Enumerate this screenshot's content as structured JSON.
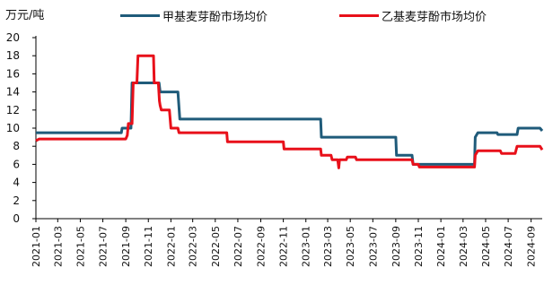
{
  "chart_data": {
    "type": "line",
    "ylabel": "万元/吨",
    "ylim": [
      0,
      20
    ],
    "yticks": [
      0,
      2,
      4,
      6,
      8,
      10,
      12,
      14,
      16,
      18,
      20
    ],
    "xlim": [
      "2021-01-01",
      "2024-10-01"
    ],
    "xticks": [
      "2021-01",
      "2021-03",
      "2021-05",
      "2021-07",
      "2021-09",
      "2021-11",
      "2022-01",
      "2022-03",
      "2022-05",
      "2022-07",
      "2022-09",
      "2022-11",
      "2023-01",
      "2023-03",
      "2023-05",
      "2023-07",
      "2023-09",
      "2023-11",
      "2024-01",
      "2024-03",
      "2024-05",
      "2024-07",
      "2024-09"
    ],
    "legend_position": "top",
    "grid": false,
    "series": [
      {
        "name": "甲基麦芽酚市场均价",
        "color": "#1f5b7a",
        "points": [
          [
            "2021-01-01",
            9.5
          ],
          [
            "2021-08-20",
            9.5
          ],
          [
            "2021-08-22",
            10
          ],
          [
            "2021-09-15",
            10
          ],
          [
            "2021-09-18",
            15
          ],
          [
            "2021-11-30",
            15
          ],
          [
            "2021-12-03",
            14
          ],
          [
            "2022-01-20",
            14
          ],
          [
            "2022-01-25",
            11
          ],
          [
            "2022-08-01",
            11
          ],
          [
            "2023-02-10",
            11
          ],
          [
            "2023-02-12",
            9
          ],
          [
            "2023-09-01",
            9
          ],
          [
            "2023-09-03",
            7
          ],
          [
            "2023-10-15",
            7
          ],
          [
            "2023-10-18",
            6
          ],
          [
            "2024-04-01",
            6
          ],
          [
            "2024-04-03",
            9
          ],
          [
            "2024-04-10",
            9.5
          ],
          [
            "2024-06-01",
            9.5
          ],
          [
            "2024-06-03",
            9.3
          ],
          [
            "2024-07-25",
            9.3
          ],
          [
            "2024-07-28",
            10
          ],
          [
            "2024-09-25",
            10
          ],
          [
            "2024-10-01",
            9.7
          ]
        ]
      },
      {
        "name": "乙基麦芽酚市场均价",
        "color": "#e8101a",
        "points": [
          [
            "2021-01-01",
            8.6
          ],
          [
            "2021-01-10",
            8.8
          ],
          [
            "2021-09-01",
            8.8
          ],
          [
            "2021-09-05",
            9.2
          ],
          [
            "2021-09-08",
            10.5
          ],
          [
            "2021-09-18",
            10.5
          ],
          [
            "2021-09-21",
            15
          ],
          [
            "2021-10-01",
            15
          ],
          [
            "2021-10-04",
            18
          ],
          [
            "2021-11-15",
            18
          ],
          [
            "2021-11-17",
            15
          ],
          [
            "2021-11-28",
            15
          ],
          [
            "2021-12-01",
            13
          ],
          [
            "2021-12-03",
            12.5
          ],
          [
            "2021-12-06",
            12
          ],
          [
            "2021-12-28",
            12
          ],
          [
            "2022-01-01",
            10
          ],
          [
            "2022-01-20",
            10
          ],
          [
            "2022-01-23",
            9.5
          ],
          [
            "2022-06-01",
            9.5
          ],
          [
            "2022-06-03",
            8.5
          ],
          [
            "2022-11-01",
            8.5
          ],
          [
            "2022-11-03",
            7.7
          ],
          [
            "2023-02-10",
            7.7
          ],
          [
            "2023-02-12",
            7
          ],
          [
            "2023-03-10",
            7
          ],
          [
            "2023-03-13",
            6.5
          ],
          [
            "2023-03-28",
            6.5
          ],
          [
            "2023-03-31",
            5.6
          ],
          [
            "2023-04-02",
            6.5
          ],
          [
            "2023-04-20",
            6.5
          ],
          [
            "2023-04-23",
            6.8
          ],
          [
            "2023-05-15",
            6.8
          ],
          [
            "2023-05-18",
            6.5
          ],
          [
            "2023-10-15",
            6.5
          ],
          [
            "2023-10-18",
            6
          ],
          [
            "2023-11-01",
            6
          ],
          [
            "2023-11-04",
            5.7
          ],
          [
            "2024-04-01",
            5.7
          ],
          [
            "2024-04-03",
            7
          ],
          [
            "2024-04-10",
            7.5
          ],
          [
            "2024-06-10",
            7.5
          ],
          [
            "2024-06-13",
            7.2
          ],
          [
            "2024-07-20",
            7.2
          ],
          [
            "2024-07-25",
            8
          ],
          [
            "2024-09-25",
            8
          ],
          [
            "2024-10-01",
            7.6
          ]
        ]
      }
    ]
  }
}
